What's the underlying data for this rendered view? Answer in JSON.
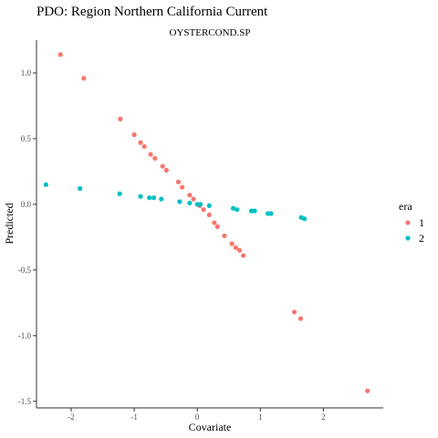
{
  "chart_data": {
    "type": "scatter",
    "title": "PDO: Region Northern California Current",
    "subtitle": "OYSTERCOND.SP",
    "xlabel": "Covariate",
    "ylabel": "Predicted",
    "xlim": [
      -2.55,
      2.95
    ],
    "ylim": [
      -1.55,
      1.25
    ],
    "x_ticks": [
      -2,
      -1,
      0,
      1,
      2
    ],
    "x_tick_labels": [
      "-2",
      "-1",
      "0",
      "1",
      "2"
    ],
    "y_ticks": [
      -1.5,
      -1.0,
      -0.5,
      0.0,
      0.5,
      1.0
    ],
    "y_tick_labels": [
      "-1.5",
      "-1.0",
      "-0.5",
      "0.0",
      "0.5",
      "1.0"
    ],
    "grid": false,
    "legend": {
      "title": "era",
      "position": "right",
      "entries": [
        {
          "label": "1",
          "color": "#F8766D"
        },
        {
          "label": "2",
          "color": "#00BFC4"
        }
      ]
    },
    "series": [
      {
        "name": "1",
        "color": "#F8766D",
        "x": [
          -2.17,
          -1.8,
          -1.22,
          -1.0,
          -0.9,
          -0.84,
          -0.74,
          -0.67,
          -0.55,
          -0.49,
          -0.3,
          -0.24,
          -0.12,
          -0.06,
          0.04,
          0.1,
          0.19,
          0.27,
          0.32,
          0.43,
          0.55,
          0.61,
          0.67,
          0.73,
          1.54,
          1.64,
          2.7
        ],
        "y": [
          1.14,
          0.96,
          0.65,
          0.53,
          0.47,
          0.44,
          0.38,
          0.35,
          0.29,
          0.26,
          0.17,
          0.13,
          0.07,
          0.04,
          -0.01,
          -0.04,
          -0.08,
          -0.14,
          -0.17,
          -0.24,
          -0.3,
          -0.33,
          -0.35,
          -0.39,
          -0.82,
          -0.87,
          -1.42
        ]
      },
      {
        "name": "2",
        "color": "#00BFC4",
        "x": [
          -2.4,
          -1.86,
          -1.23,
          -0.9,
          -0.76,
          -0.69,
          -0.57,
          -0.28,
          -0.12,
          0.0,
          0.05,
          0.19,
          0.57,
          0.63,
          0.86,
          0.91,
          1.12,
          1.17,
          1.65,
          1.7
        ],
        "y": [
          0.15,
          0.12,
          0.08,
          0.06,
          0.05,
          0.05,
          0.04,
          0.02,
          0.01,
          0.0,
          0.0,
          -0.01,
          -0.03,
          -0.04,
          -0.05,
          -0.05,
          -0.07,
          -0.07,
          -0.1,
          -0.11
        ]
      }
    ]
  }
}
